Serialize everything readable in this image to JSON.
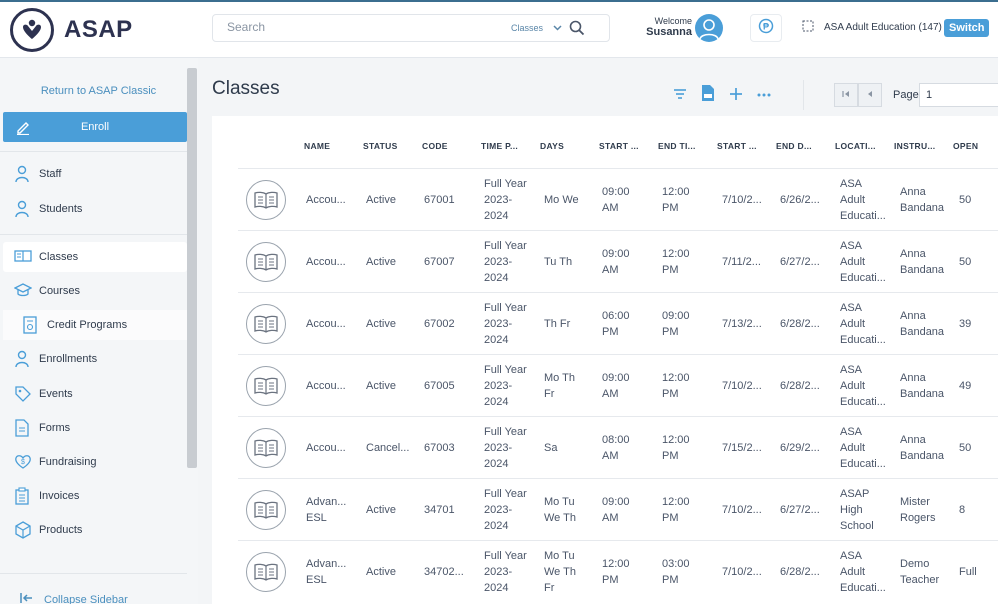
{
  "app": {
    "logo_text": "ASAP"
  },
  "search": {
    "placeholder": "Search",
    "scope": "Classes"
  },
  "user": {
    "welcome": "Welcome",
    "name": "Susanna"
  },
  "org": {
    "name": "ASA Adult Education (147)",
    "switch_label": "Switch"
  },
  "sidebar": {
    "return_link": "Return to ASAP Classic",
    "enroll_label": "Enroll",
    "items": [
      {
        "label": "Staff",
        "icon": "person-icon"
      },
      {
        "label": "Students",
        "icon": "person-icon"
      },
      {
        "label": "Classes",
        "icon": "classes-icon",
        "active": true
      },
      {
        "label": "Courses",
        "icon": "graduation-cap-icon"
      },
      {
        "label": "Credit Programs",
        "icon": "certificate-icon",
        "sub": true
      },
      {
        "label": "Enrollments",
        "icon": "person-icon"
      },
      {
        "label": "Events",
        "icon": "tag-icon"
      },
      {
        "label": "Forms",
        "icon": "form-icon"
      },
      {
        "label": "Fundraising",
        "icon": "heart-icon"
      },
      {
        "label": "Invoices",
        "icon": "clipboard-icon"
      },
      {
        "label": "Products",
        "icon": "box-icon"
      }
    ],
    "collapse_label": "Collapse Sidebar"
  },
  "main": {
    "title": "Classes",
    "pagination": {
      "page_label": "Page",
      "page_value": "1"
    }
  },
  "table": {
    "headers": [
      "NAME",
      "STATUS",
      "CODE",
      "TIME P...",
      "DAYS",
      "START ...",
      "END TI...",
      "START ...",
      "END D...",
      "LOCATI...",
      "INSTRU...",
      "OPEN"
    ],
    "rows": [
      {
        "name": [
          "Accou..."
        ],
        "status": "Active",
        "code": "67001",
        "time": [
          "Full Year",
          "2023-",
          "2024"
        ],
        "days": [
          "Mo We"
        ],
        "start_time": [
          "09:00",
          "AM"
        ],
        "end_time": [
          "12:00",
          "PM"
        ],
        "start_date": "7/10/2...",
        "end_date": "6/26/2...",
        "location": [
          "ASA",
          "Adult",
          "Educati..."
        ],
        "instructor": [
          "Anna",
          "Bandana"
        ],
        "open": "50"
      },
      {
        "name": [
          "Accou..."
        ],
        "status": "Active",
        "code": "67007",
        "time": [
          "Full Year",
          "2023-",
          "2024"
        ],
        "days": [
          "Tu Th"
        ],
        "start_time": [
          "09:00",
          "AM"
        ],
        "end_time": [
          "12:00",
          "PM"
        ],
        "start_date": "7/11/2...",
        "end_date": "6/27/2...",
        "location": [
          "ASA",
          "Adult",
          "Educati..."
        ],
        "instructor": [
          "Anna",
          "Bandana"
        ],
        "open": "50"
      },
      {
        "name": [
          "Accou..."
        ],
        "status": "Active",
        "code": "67002",
        "time": [
          "Full Year",
          "2023-",
          "2024"
        ],
        "days": [
          "Th Fr"
        ],
        "start_time": [
          "06:00",
          "PM"
        ],
        "end_time": [
          "09:00",
          "PM"
        ],
        "start_date": "7/13/2...",
        "end_date": "6/28/2...",
        "location": [
          "ASA",
          "Adult",
          "Educati..."
        ],
        "instructor": [
          "Anna",
          "Bandana"
        ],
        "open": "39"
      },
      {
        "name": [
          "Accou..."
        ],
        "status": "Active",
        "code": "67005",
        "time": [
          "Full Year",
          "2023-",
          "2024"
        ],
        "days": [
          "Mo Th",
          "Fr"
        ],
        "start_time": [
          "09:00",
          "AM"
        ],
        "end_time": [
          "12:00",
          "PM"
        ],
        "start_date": "7/10/2...",
        "end_date": "6/28/2...",
        "location": [
          "ASA",
          "Adult",
          "Educati..."
        ],
        "instructor": [
          "Anna",
          "Bandana"
        ],
        "open": "49"
      },
      {
        "name": [
          "Accou..."
        ],
        "status": "Cancel...",
        "code": "67003",
        "time": [
          "Full Year",
          "2023-",
          "2024"
        ],
        "days": [
          "Sa"
        ],
        "start_time": [
          "08:00",
          "AM"
        ],
        "end_time": [
          "12:00",
          "PM"
        ],
        "start_date": "7/15/2...",
        "end_date": "6/29/2...",
        "location": [
          "ASA",
          "Adult",
          "Educati..."
        ],
        "instructor": [
          "Anna",
          "Bandana"
        ],
        "open": "50"
      },
      {
        "name": [
          "Advan...",
          "ESL"
        ],
        "status": "Active",
        "code": "34701",
        "time": [
          "Full Year",
          "2023-",
          "2024"
        ],
        "days": [
          "Mo Tu",
          "We Th"
        ],
        "start_time": [
          "09:00",
          "AM"
        ],
        "end_time": [
          "12:00",
          "PM"
        ],
        "start_date": "7/10/2...",
        "end_date": "6/27/2...",
        "location": [
          "ASAP",
          "High",
          "School"
        ],
        "instructor": [
          "Mister",
          "Rogers"
        ],
        "open": "8"
      },
      {
        "name": [
          "Advan...",
          "ESL"
        ],
        "status": "Active",
        "code": "34702...",
        "time": [
          "Full Year",
          "2023-",
          "2024"
        ],
        "days": [
          "Mo Tu",
          "We Th",
          "Fr"
        ],
        "start_time": [
          "12:00",
          "PM"
        ],
        "end_time": [
          "03:00",
          "PM"
        ],
        "start_date": "7/10/2...",
        "end_date": "6/28/2...",
        "location": [
          "ASA",
          "Adult",
          "Educati..."
        ],
        "instructor": [
          "Demo",
          "Teacher"
        ],
        "open": "Full"
      }
    ]
  },
  "colors": {
    "accent": "#4a9ed8",
    "brand": "#2d3250",
    "link": "#4a8fbe"
  }
}
